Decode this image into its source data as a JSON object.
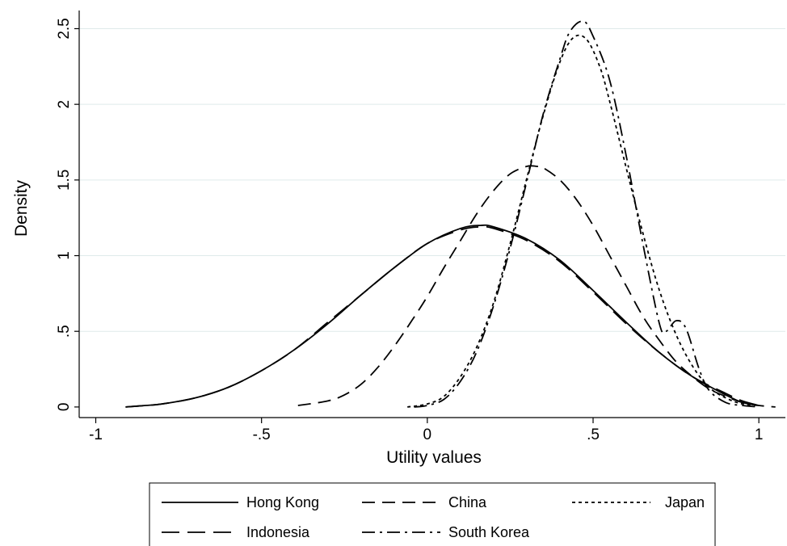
{
  "chart_data": {
    "type": "line",
    "title": "",
    "xlabel": "Utility values",
    "ylabel": "Density",
    "xlim": [
      -1.05,
      1.08
    ],
    "ylim": [
      -0.07,
      2.62
    ],
    "x_ticks": [
      {
        "value": -1,
        "label": "-1"
      },
      {
        "value": -0.5,
        "label": "-.5"
      },
      {
        "value": 0,
        "label": "0"
      },
      {
        "value": 0.5,
        "label": ".5"
      },
      {
        "value": 1,
        "label": "1"
      }
    ],
    "y_ticks": [
      {
        "value": 0,
        "label": "0"
      },
      {
        "value": 0.5,
        "label": ".5"
      },
      {
        "value": 1,
        "label": "1"
      },
      {
        "value": 1.5,
        "label": "1.5"
      },
      {
        "value": 2,
        "label": "2"
      },
      {
        "value": 2.5,
        "label": "2.5"
      }
    ],
    "grid": "horizontal",
    "legend_position": "bottom",
    "series": [
      {
        "name": "Hong Kong",
        "dash": "solid",
        "color": "#000000",
        "x": [
          -0.91,
          -0.85,
          -0.8,
          -0.7,
          -0.6,
          -0.5,
          -0.4,
          -0.3,
          -0.2,
          -0.1,
          0,
          0.1,
          0.16,
          0.2,
          0.3,
          0.4,
          0.5,
          0.6,
          0.7,
          0.8,
          0.9,
          0.95,
          1.0
        ],
        "y": [
          0.0,
          0.01,
          0.02,
          0.06,
          0.13,
          0.24,
          0.38,
          0.55,
          0.74,
          0.92,
          1.08,
          1.18,
          1.2,
          1.19,
          1.11,
          0.97,
          0.77,
          0.56,
          0.36,
          0.2,
          0.08,
          0.03,
          0.01
        ]
      },
      {
        "name": "China",
        "dash": "longdash",
        "color": "#000000",
        "x": [
          -0.39,
          -0.3,
          -0.25,
          -0.2,
          -0.15,
          -0.1,
          -0.05,
          0,
          0.05,
          0.1,
          0.15,
          0.2,
          0.25,
          0.3,
          0.33,
          0.35,
          0.4,
          0.45,
          0.5,
          0.55,
          0.6,
          0.65,
          0.7,
          0.75,
          0.8,
          0.85,
          0.9,
          0.95,
          1.0,
          1.05
        ],
        "y": [
          0.01,
          0.04,
          0.08,
          0.15,
          0.26,
          0.4,
          0.56,
          0.73,
          0.92,
          1.1,
          1.28,
          1.43,
          1.54,
          1.59,
          1.59,
          1.58,
          1.5,
          1.37,
          1.2,
          1.0,
          0.8,
          0.6,
          0.44,
          0.3,
          0.2,
          0.12,
          0.07,
          0.03,
          0.01,
          0.0
        ]
      },
      {
        "name": "Japan",
        "dash": "shortdash",
        "color": "#000000",
        "x": [
          -0.06,
          0,
          0.05,
          0.1,
          0.15,
          0.2,
          0.25,
          0.3,
          0.35,
          0.4,
          0.44,
          0.48,
          0.52,
          0.55,
          0.6,
          0.65,
          0.7,
          0.75,
          0.8,
          0.85,
          0.9,
          0.95,
          1.0
        ],
        "y": [
          0.0,
          0.02,
          0.07,
          0.2,
          0.4,
          0.69,
          1.08,
          1.51,
          1.93,
          2.28,
          2.44,
          2.43,
          2.25,
          2.02,
          1.58,
          1.15,
          0.77,
          0.48,
          0.27,
          0.13,
          0.06,
          0.02,
          0.01
        ]
      },
      {
        "name": "Indonesia",
        "dash": "dash",
        "color": "#000000",
        "x": [
          -0.91,
          -0.85,
          -0.8,
          -0.7,
          -0.6,
          -0.5,
          -0.4,
          -0.3,
          -0.2,
          -0.1,
          0,
          0.1,
          0.16,
          0.2,
          0.3,
          0.4,
          0.5,
          0.6,
          0.7,
          0.8,
          0.9,
          0.95,
          1.0
        ],
        "y": [
          0.0,
          0.01,
          0.02,
          0.06,
          0.13,
          0.24,
          0.38,
          0.56,
          0.74,
          0.92,
          1.08,
          1.17,
          1.19,
          1.18,
          1.1,
          0.96,
          0.76,
          0.55,
          0.36,
          0.2,
          0.09,
          0.04,
          0.01
        ]
      },
      {
        "name": "South Korea",
        "dash": "dashdot",
        "color": "#000000",
        "x": [
          -0.04,
          0,
          0.05,
          0.1,
          0.15,
          0.2,
          0.25,
          0.3,
          0.35,
          0.4,
          0.43,
          0.47,
          0.5,
          0.55,
          0.6,
          0.65,
          0.7,
          0.72,
          0.75,
          0.78,
          0.82,
          0.85,
          0.9,
          0.95,
          1.0
        ],
        "y": [
          0.0,
          0.01,
          0.05,
          0.17,
          0.37,
          0.67,
          1.05,
          1.49,
          1.94,
          2.3,
          2.48,
          2.55,
          2.45,
          2.16,
          1.66,
          1.08,
          0.55,
          0.5,
          0.57,
          0.52,
          0.25,
          0.11,
          0.03,
          0.01,
          0.0
        ]
      }
    ],
    "legend": [
      {
        "label": "Hong Kong",
        "dash": "solid"
      },
      {
        "label": "China",
        "dash": "longdash"
      },
      {
        "label": "Japan",
        "dash": "shortdash"
      },
      {
        "label": "Indonesia",
        "dash": "dash"
      },
      {
        "label": "South Korea",
        "dash": "dashdot"
      }
    ]
  }
}
